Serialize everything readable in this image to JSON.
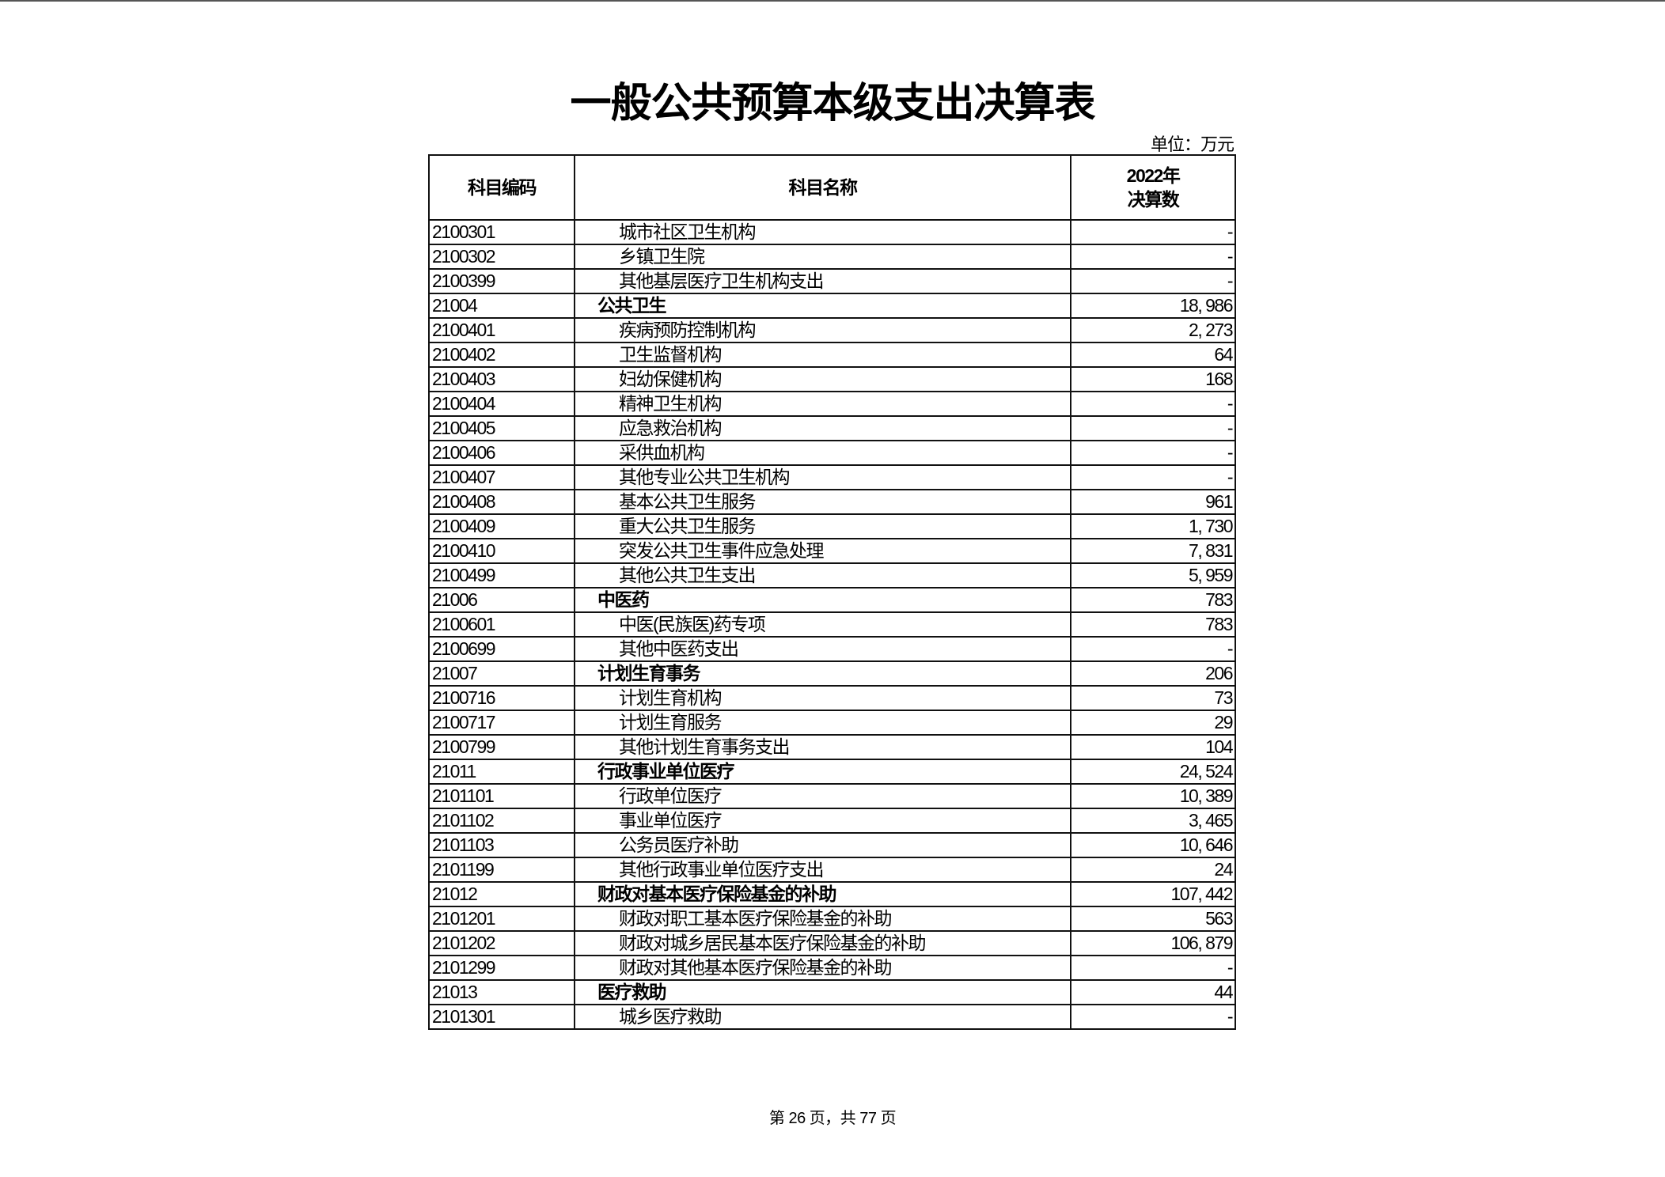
{
  "title": "一般公共预算本级支出决算表",
  "unit": "单位：万元",
  "headers": {
    "code": "科目编码",
    "name": "科目名称",
    "year": "2022年",
    "amount": "决算数"
  },
  "rows": [
    {
      "code": "2100301",
      "name": "城市社区卫生机构",
      "value": "-",
      "level": 2
    },
    {
      "code": "2100302",
      "name": "乡镇卫生院",
      "value": "-",
      "level": 2
    },
    {
      "code": "2100399",
      "name": "其他基层医疗卫生机构支出",
      "value": "-",
      "level": 2
    },
    {
      "code": "21004",
      "name": "公共卫生",
      "value": "18, 986",
      "level": 1
    },
    {
      "code": "2100401",
      "name": "疾病预防控制机构",
      "value": "2, 273",
      "level": 2
    },
    {
      "code": "2100402",
      "name": "卫生监督机构",
      "value": "64",
      "level": 2
    },
    {
      "code": "2100403",
      "name": "妇幼保健机构",
      "value": "168",
      "level": 2
    },
    {
      "code": "2100404",
      "name": "精神卫生机构",
      "value": "-",
      "level": 2
    },
    {
      "code": "2100405",
      "name": "应急救治机构",
      "value": "-",
      "level": 2
    },
    {
      "code": "2100406",
      "name": "采供血机构",
      "value": "-",
      "level": 2
    },
    {
      "code": "2100407",
      "name": "其他专业公共卫生机构",
      "value": "-",
      "level": 2
    },
    {
      "code": "2100408",
      "name": "基本公共卫生服务",
      "value": "961",
      "level": 2
    },
    {
      "code": "2100409",
      "name": "重大公共卫生服务",
      "value": "1, 730",
      "level": 2
    },
    {
      "code": "2100410",
      "name": "突发公共卫生事件应急处理",
      "value": "7, 831",
      "level": 2
    },
    {
      "code": "2100499",
      "name": "其他公共卫生支出",
      "value": "5, 959",
      "level": 2
    },
    {
      "code": "21006",
      "name": "中医药",
      "value": "783",
      "level": 1
    },
    {
      "code": "2100601",
      "name": "中医(民族医)药专项",
      "value": "783",
      "level": 2
    },
    {
      "code": "2100699",
      "name": "其他中医药支出",
      "value": "-",
      "level": 2
    },
    {
      "code": "21007",
      "name": "计划生育事务",
      "value": "206",
      "level": 1
    },
    {
      "code": "2100716",
      "name": "计划生育机构",
      "value": "73",
      "level": 2
    },
    {
      "code": "2100717",
      "name": "计划生育服务",
      "value": "29",
      "level": 2
    },
    {
      "code": "2100799",
      "name": "其他计划生育事务支出",
      "value": "104",
      "level": 2
    },
    {
      "code": "21011",
      "name": "行政事业单位医疗",
      "value": "24, 524",
      "level": 1
    },
    {
      "code": "2101101",
      "name": "行政单位医疗",
      "value": "10, 389",
      "level": 2
    },
    {
      "code": "2101102",
      "name": "事业单位医疗",
      "value": "3, 465",
      "level": 2
    },
    {
      "code": "2101103",
      "name": "公务员医疗补助",
      "value": "10, 646",
      "level": 2
    },
    {
      "code": "2101199",
      "name": "其他行政事业单位医疗支出",
      "value": "24",
      "level": 2
    },
    {
      "code": "21012",
      "name": "财政对基本医疗保险基金的补助",
      "value": "107, 442",
      "level": 1
    },
    {
      "code": "2101201",
      "name": "财政对职工基本医疗保险基金的补助",
      "value": "563",
      "level": 2
    },
    {
      "code": "2101202",
      "name": "财政对城乡居民基本医疗保险基金的补助",
      "value": "106, 879",
      "level": 2
    },
    {
      "code": "2101299",
      "name": "财政对其他基本医疗保险基金的补助",
      "value": "-",
      "level": 2
    },
    {
      "code": "21013",
      "name": "医疗救助",
      "value": "44",
      "level": 1
    },
    {
      "code": "2101301",
      "name": "城乡医疗救助",
      "value": "-",
      "level": 2
    }
  ],
  "footer": "第 26 页，共 77 页"
}
